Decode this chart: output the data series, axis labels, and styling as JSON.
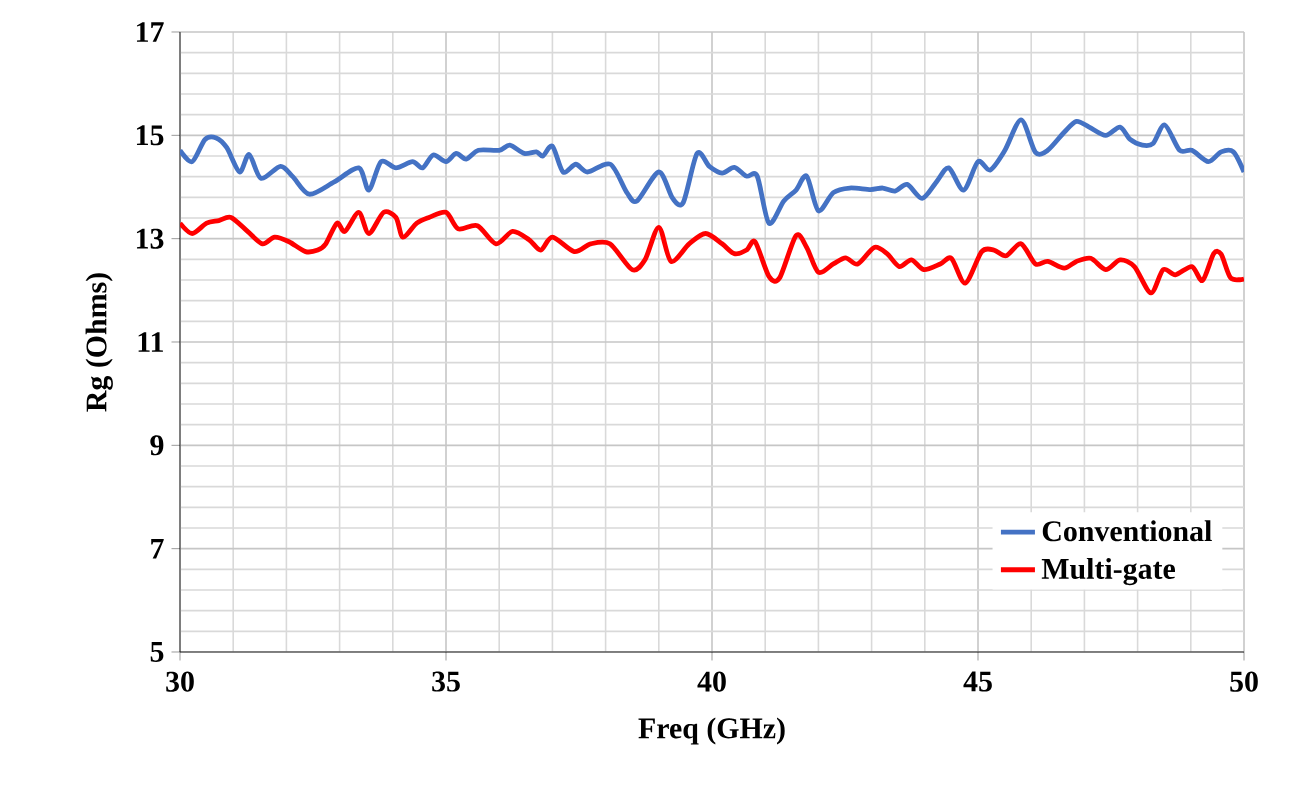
{
  "chart_data": {
    "type": "line",
    "xlabel": "Freq (GHz)",
    "ylabel": "Rg (Ohms)",
    "xlim": [
      30,
      50
    ],
    "xticks": [
      30,
      35,
      40,
      45,
      50
    ],
    "ylim": [
      5,
      17
    ],
    "yticks": [
      5,
      7,
      9,
      11,
      13,
      15,
      17
    ],
    "grid": true,
    "legend": "bottom right",
    "marker": "none",
    "line_style": "solid",
    "series": [
      {
        "name": "Conventional",
        "color": "#4472c4",
        "x": [
          30,
          30.23,
          30.47,
          30.68,
          30.88,
          31.12,
          31.3,
          31.52,
          31.89,
          32.12,
          32.43,
          32.9,
          33.36,
          33.55,
          33.78,
          34.06,
          34.37,
          34.56,
          34.76,
          35.0,
          35.19,
          35.38,
          35.61,
          36.0,
          36.2,
          36.47,
          36.7,
          36.82,
          37.0,
          37.2,
          37.44,
          37.66,
          38.09,
          38.4,
          38.59,
          39.0,
          39.26,
          39.46,
          39.72,
          39.95,
          40.19,
          40.42,
          40.65,
          40.85,
          41.07,
          41.35,
          41.58,
          41.78,
          42.0,
          42.28,
          42.59,
          42.98,
          43.21,
          43.44,
          43.67,
          43.95,
          44.22,
          44.45,
          44.73,
          45.0,
          45.23,
          45.5,
          45.81,
          46.08,
          46.31,
          46.62,
          46.85,
          47.09,
          47.4,
          47.67,
          47.86,
          48.09,
          48.29,
          48.51,
          48.79,
          49.02,
          49.33,
          49.57,
          49.8,
          50
        ],
        "values": [
          14.71,
          14.49,
          14.92,
          14.95,
          14.76,
          14.29,
          14.63,
          14.17,
          14.4,
          14.2,
          13.86,
          14.1,
          14.37,
          13.94,
          14.49,
          14.37,
          14.49,
          14.37,
          14.62,
          14.49,
          14.65,
          14.54,
          14.71,
          14.71,
          14.81,
          14.65,
          14.68,
          14.6,
          14.79,
          14.29,
          14.44,
          14.29,
          14.44,
          13.89,
          13.73,
          14.29,
          13.78,
          13.7,
          14.65,
          14.4,
          14.27,
          14.38,
          14.21,
          14.21,
          13.3,
          13.73,
          13.94,
          14.21,
          13.54,
          13.89,
          13.98,
          13.95,
          13.98,
          13.92,
          14.05,
          13.78,
          14.1,
          14.37,
          13.94,
          14.49,
          14.33,
          14.7,
          15.3,
          14.67,
          14.71,
          15.06,
          15.27,
          15.16,
          15.0,
          15.16,
          14.92,
          14.81,
          14.84,
          15.2,
          14.71,
          14.71,
          14.49,
          14.68,
          14.68,
          14.29
        ]
      },
      {
        "name": "Multi-gate",
        "color": "#ff0000",
        "x": [
          30,
          30.23,
          30.5,
          30.73,
          30.96,
          31.27,
          31.55,
          31.78,
          32.05,
          32.36,
          32.59,
          32.74,
          32.95,
          33.1,
          33.36,
          33.55,
          33.83,
          34.06,
          34.19,
          34.45,
          34.68,
          35.0,
          35.23,
          35.59,
          35.94,
          36.25,
          36.56,
          36.78,
          37.0,
          37.41,
          37.72,
          38.08,
          38.5,
          38.74,
          39.0,
          39.23,
          39.57,
          39.88,
          40.19,
          40.42,
          40.65,
          40.81,
          41.07,
          41.27,
          41.58,
          41.78,
          42.0,
          42.28,
          42.51,
          42.74,
          43.05,
          43.29,
          43.52,
          43.75,
          43.98,
          44.29,
          44.5,
          44.76,
          45.07,
          45.3,
          45.53,
          45.81,
          46.08,
          46.31,
          46.62,
          46.85,
          47.12,
          47.4,
          47.67,
          47.94,
          48.25,
          48.48,
          48.71,
          49.02,
          49.22,
          49.43,
          49.57,
          49.75,
          50
        ],
        "values": [
          13.3,
          13.1,
          13.3,
          13.35,
          13.41,
          13.14,
          12.9,
          13.03,
          12.94,
          12.75,
          12.78,
          12.9,
          13.3,
          13.14,
          13.51,
          13.1,
          13.51,
          13.41,
          13.03,
          13.3,
          13.41,
          13.51,
          13.19,
          13.25,
          12.9,
          13.14,
          12.98,
          12.78,
          13.03,
          12.75,
          12.9,
          12.9,
          12.4,
          12.59,
          13.22,
          12.56,
          12.9,
          13.1,
          12.9,
          12.71,
          12.78,
          12.94,
          12.27,
          12.24,
          13.06,
          12.83,
          12.35,
          12.51,
          12.63,
          12.51,
          12.83,
          12.71,
          12.46,
          12.59,
          12.4,
          12.51,
          12.62,
          12.14,
          12.75,
          12.78,
          12.67,
          12.9,
          12.51,
          12.56,
          12.43,
          12.56,
          12.62,
          12.4,
          12.59,
          12.46,
          11.95,
          12.4,
          12.3,
          12.46,
          12.19,
          12.71,
          12.7,
          12.24,
          12.22
        ]
      }
    ]
  }
}
